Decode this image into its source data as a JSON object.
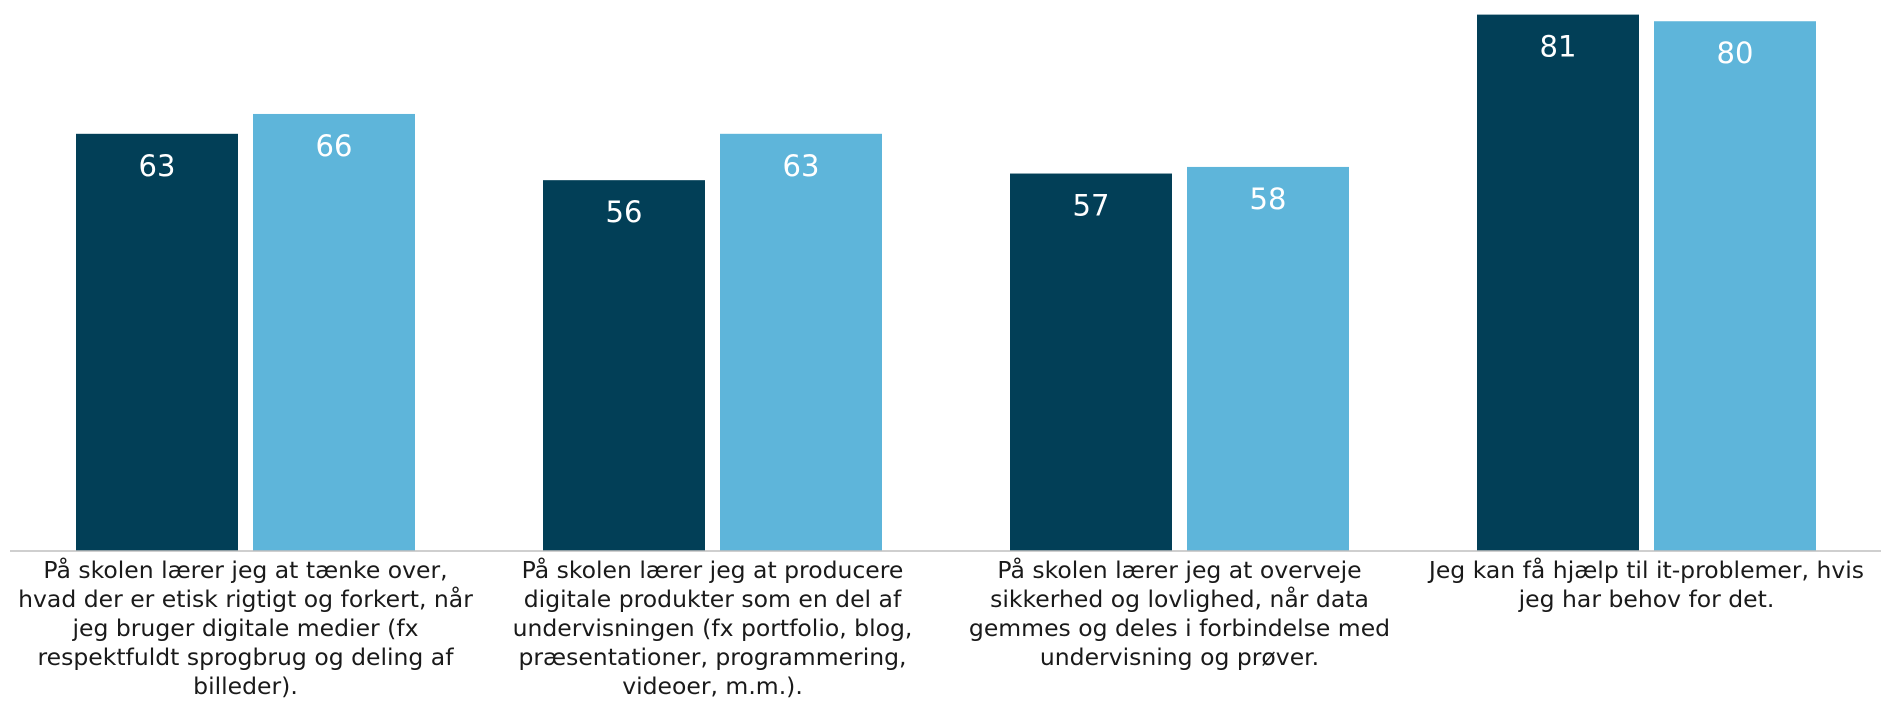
{
  "chart_data": {
    "type": "bar",
    "categories": [
      "På skolen lærer jeg at tænke over, hvad der er etisk rigtigt og forkert, når jeg bruger digitale medier (fx respektfuldt sprogbrug og deling af billeder).",
      "På skolen lærer jeg at producere digitale produkter som en del af undervisningen (fx portfolio, blog, præsentationer, programmering, videoer, m.m.).",
      "På skolen lærer jeg at overveje sikkerhed og lovlighed, når data gemmes og deles i forbindelse med undervisning og prøver.",
      "Jeg kan få hjælp til it-problemer, hvis jeg har behov for det."
    ],
    "series": [
      {
        "color": "#023f57",
        "values": [
          63,
          56,
          57,
          81
        ]
      },
      {
        "color": "#5eb5da",
        "values": [
          66,
          63,
          58,
          80
        ]
      }
    ],
    "ylim": [
      0,
      82
    ]
  }
}
